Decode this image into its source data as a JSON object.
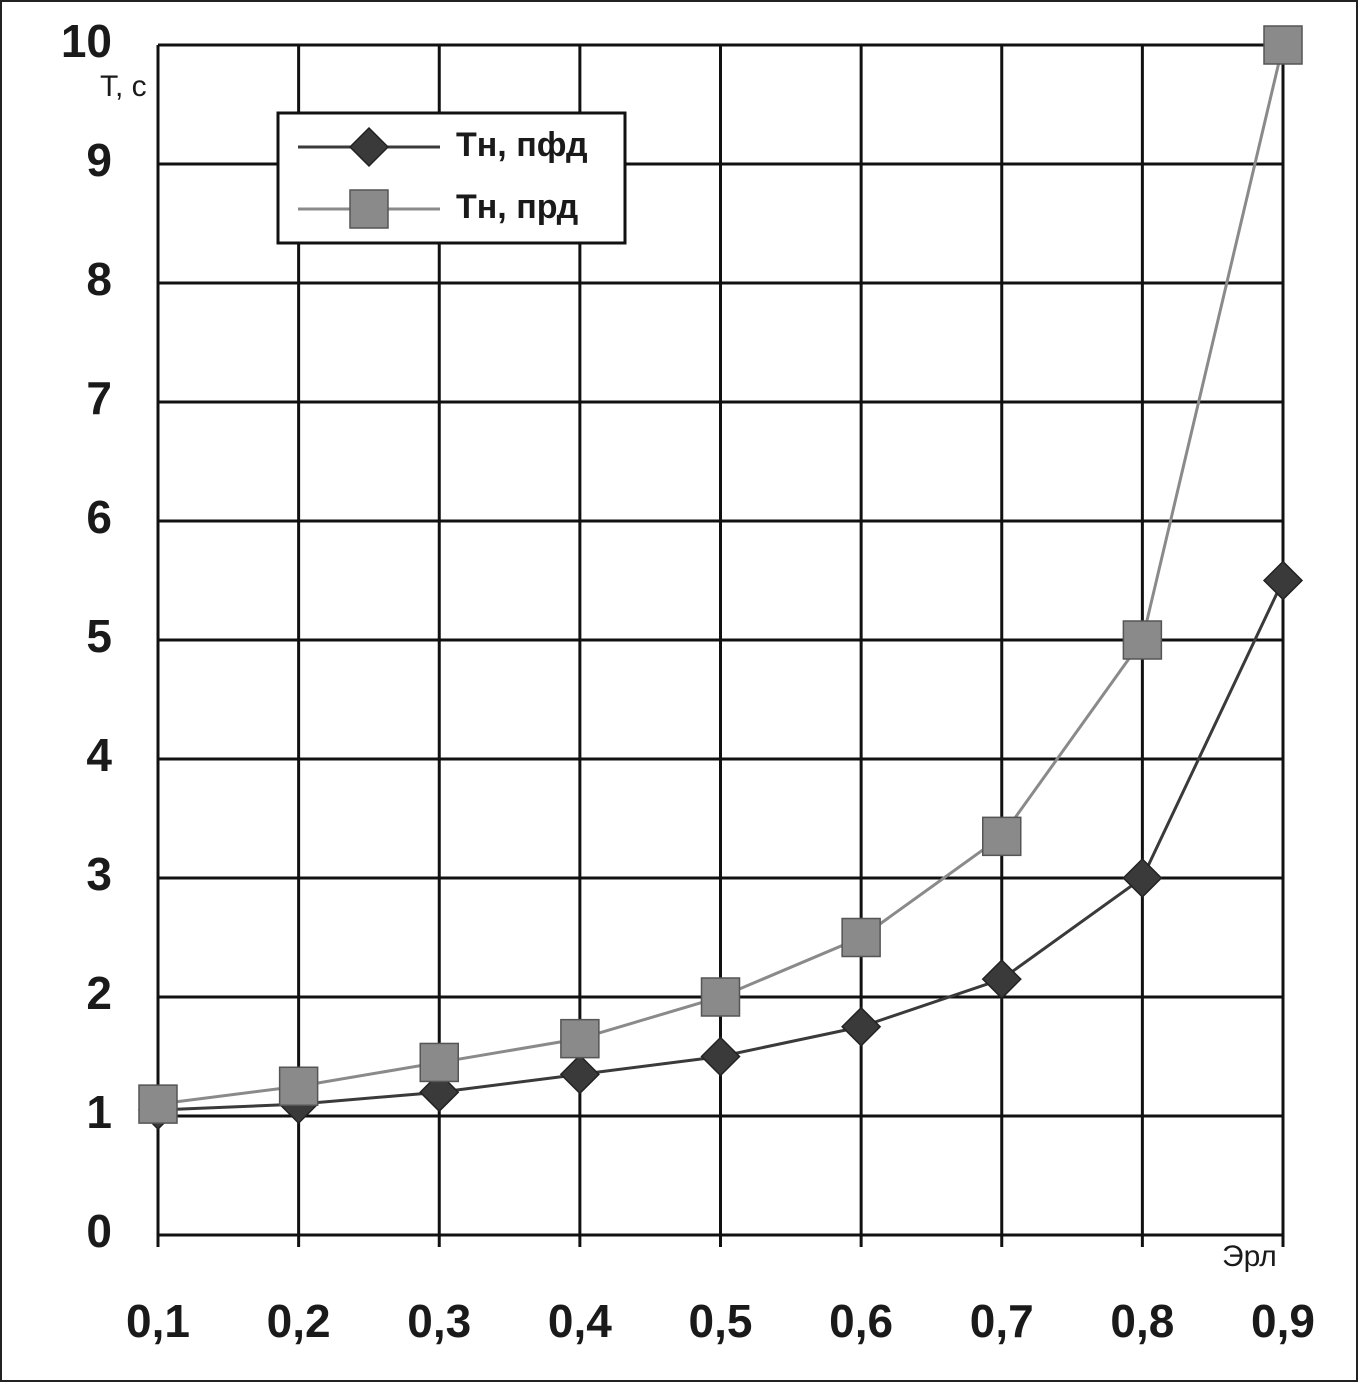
{
  "chart_data": {
    "type": "line",
    "y_label": "Т, с",
    "x_label": "Эрл",
    "categories": [
      "0,1",
      "0,2",
      "0,3",
      "0,4",
      "0,5",
      "0,6",
      "0,7",
      "0,8",
      "0,9"
    ],
    "series": [
      {
        "name": "Тн, пфд",
        "color": "#3a3a3a",
        "marker": "diamond",
        "values": [
          1.05,
          1.1,
          1.2,
          1.35,
          1.5,
          1.75,
          2.15,
          3.0,
          5.5
        ]
      },
      {
        "name": "Тн, прд",
        "color": "#8a8a8a",
        "marker": "square",
        "values": [
          1.1,
          1.25,
          1.45,
          1.65,
          2.0,
          2.5,
          3.35,
          5.0,
          10.0
        ]
      }
    ],
    "ylim": [
      0,
      10
    ],
    "yticks": [
      0,
      1,
      2,
      3,
      4,
      5,
      6,
      7,
      8,
      9,
      10
    ],
    "grid": true,
    "legend": "top-left"
  }
}
